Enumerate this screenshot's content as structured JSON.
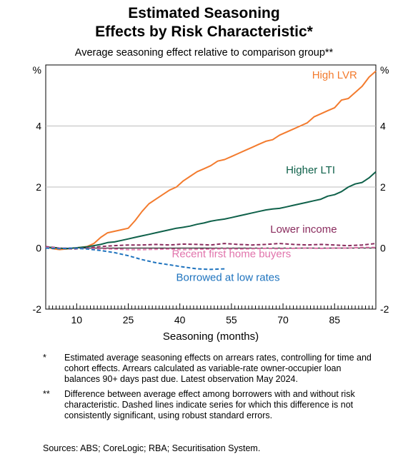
{
  "title_line1": "Estimated Seasoning",
  "title_line2": "Effects by Risk Characteristic*",
  "subtitle": "Average seasoning effect relative to comparison group**",
  "chart_data": {
    "type": "line",
    "xlabel": "Seasoning (months)",
    "ylabel_left": "%",
    "ylabel_right": "%",
    "xlim": [
      1,
      97
    ],
    "ylim": [
      -2,
      6
    ],
    "x_ticks": [
      10,
      25,
      40,
      55,
      70,
      85
    ],
    "y_ticks": [
      -2,
      0,
      2,
      4
    ],
    "grid": true,
    "series": [
      {
        "name": "High LVR",
        "color": "#f37b2e",
        "dashed": false,
        "x": [
          1,
          3,
          5,
          7,
          9,
          11,
          13,
          15,
          17,
          19,
          21,
          23,
          25,
          27,
          29,
          31,
          33,
          35,
          37,
          39,
          41,
          43,
          45,
          47,
          49,
          51,
          53,
          55,
          57,
          59,
          61,
          63,
          65,
          67,
          69,
          71,
          73,
          75,
          77,
          79,
          81,
          83,
          85,
          87,
          89,
          91,
          93,
          95,
          97
        ],
        "y": [
          0.05,
          -0.02,
          -0.05,
          -0.03,
          0.0,
          0.02,
          0.05,
          0.15,
          0.35,
          0.5,
          0.55,
          0.6,
          0.65,
          0.9,
          1.2,
          1.45,
          1.6,
          1.75,
          1.9,
          2.0,
          2.2,
          2.35,
          2.5,
          2.6,
          2.7,
          2.85,
          2.9,
          3.0,
          3.1,
          3.2,
          3.3,
          3.4,
          3.5,
          3.55,
          3.7,
          3.8,
          3.9,
          4.0,
          4.1,
          4.3,
          4.4,
          4.5,
          4.6,
          4.85,
          4.9,
          5.1,
          5.3,
          5.6,
          5.8
        ]
      },
      {
        "name": "Higher LTI",
        "color": "#0f614a",
        "dashed": false,
        "x": [
          1,
          3,
          5,
          7,
          9,
          11,
          13,
          15,
          17,
          19,
          21,
          23,
          25,
          27,
          29,
          31,
          33,
          35,
          37,
          39,
          41,
          43,
          45,
          47,
          49,
          51,
          53,
          55,
          57,
          59,
          61,
          63,
          65,
          67,
          69,
          71,
          73,
          75,
          77,
          79,
          81,
          83,
          85,
          87,
          89,
          91,
          93,
          95,
          97
        ],
        "y": [
          0.03,
          0.02,
          0.0,
          -0.02,
          0.0,
          0.02,
          0.04,
          0.08,
          0.12,
          0.18,
          0.2,
          0.25,
          0.3,
          0.35,
          0.4,
          0.45,
          0.5,
          0.55,
          0.6,
          0.65,
          0.68,
          0.72,
          0.78,
          0.82,
          0.88,
          0.92,
          0.95,
          1.0,
          1.05,
          1.1,
          1.15,
          1.2,
          1.25,
          1.28,
          1.3,
          1.35,
          1.4,
          1.45,
          1.5,
          1.55,
          1.6,
          1.7,
          1.75,
          1.85,
          2.0,
          2.1,
          2.15,
          2.3,
          2.5
        ]
      },
      {
        "name": "Lower income",
        "color": "#8a2c5e",
        "dashed": true,
        "x": [
          1,
          5,
          9,
          13,
          17,
          21,
          25,
          29,
          33,
          37,
          41,
          45,
          49,
          53,
          57,
          61,
          65,
          69,
          73,
          77,
          81,
          85,
          89,
          93,
          97
        ],
        "y": [
          0.05,
          0.0,
          -0.03,
          0.0,
          0.05,
          0.08,
          0.1,
          0.1,
          0.12,
          0.1,
          0.13,
          0.12,
          0.1,
          0.15,
          0.12,
          0.1,
          0.12,
          0.15,
          0.12,
          0.1,
          0.12,
          0.1,
          0.08,
          0.1,
          0.15
        ]
      },
      {
        "name": "Recent first home buyers",
        "color": "#e173ab",
        "dashed": true,
        "x": [
          1,
          5,
          9,
          13,
          17,
          21,
          25,
          29,
          33,
          37,
          41,
          45,
          49,
          53,
          57,
          61,
          65,
          69,
          73,
          77,
          81,
          85,
          89,
          93,
          97
        ],
        "y": [
          0.02,
          0.0,
          0.0,
          -0.02,
          -0.02,
          -0.03,
          -0.05,
          -0.05,
          -0.04,
          -0.03,
          -0.05,
          -0.04,
          -0.03,
          -0.02,
          -0.03,
          -0.02,
          -0.01,
          -0.02,
          -0.01,
          0.0,
          -0.01,
          0.0,
          0.0,
          0.02,
          0.02
        ]
      },
      {
        "name": "Borrowed at low rates",
        "color": "#1e73be",
        "dashed": true,
        "x": [
          1,
          5,
          9,
          13,
          17,
          21,
          25,
          29,
          33,
          37,
          41,
          45,
          49,
          53
        ],
        "y": [
          0.0,
          -0.02,
          0.0,
          -0.03,
          -0.08,
          -0.15,
          -0.25,
          -0.38,
          -0.48,
          -0.55,
          -0.62,
          -0.68,
          -0.7,
          -0.68
        ]
      }
    ]
  },
  "notes": [
    {
      "mark": "*",
      "text": "Estimated average seasoning effects on arrears rates, controlling for time and cohort effects. Arrears calculated as variable-rate owner-occupier loan balances 90+ days past due. Latest observation May 2024."
    },
    {
      "mark": "**",
      "text": "Difference between average effect among borrowers with and without risk characteristic. Dashed lines indicate series for which this difference is not consistently significant, using robust standard errors."
    }
  ],
  "sources": "Sources: ABS; CoreLogic; RBA; Securitisation System."
}
